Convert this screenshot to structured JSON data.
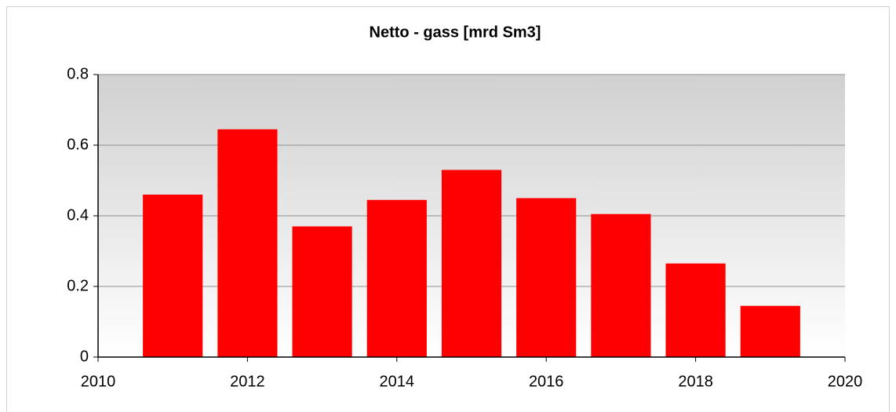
{
  "chart_data": {
    "type": "bar",
    "title": "Netto - gass [mrd Sm3]",
    "x": [
      2011,
      2012,
      2013,
      2014,
      2015,
      2016,
      2017,
      2018,
      2019
    ],
    "values": [
      0.46,
      0.645,
      0.37,
      0.445,
      0.53,
      0.45,
      0.405,
      0.265,
      0.145
    ],
    "color": "#ff0000",
    "xlim": [
      2010,
      2020
    ],
    "xticks": [
      2010,
      2012,
      2014,
      2016,
      2018,
      2020
    ],
    "ylim": [
      0,
      0.8
    ],
    "yticks": [
      0,
      0.2,
      0.4,
      0.6,
      0.8
    ],
    "grid": true
  }
}
